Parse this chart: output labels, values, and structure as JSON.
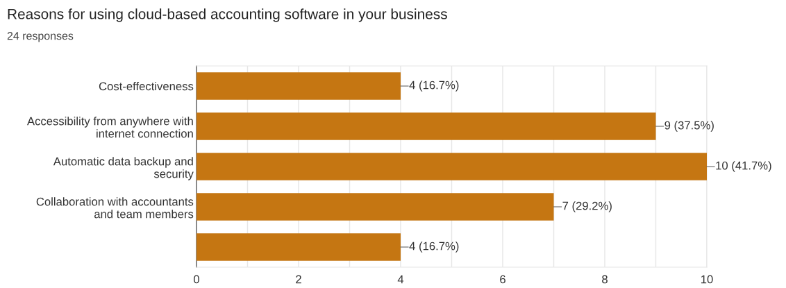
{
  "chart_data": {
    "type": "bar",
    "orientation": "horizontal",
    "title": "Reasons for using cloud-based accounting software in your business",
    "subtitle": "24 responses",
    "categories": [
      "Cost-effectiveness",
      "Accessibility from anywhere with\ninternet connection",
      "Automatic data backup and\nsecurity",
      "Collaboration with accountants\nand team members",
      null
    ],
    "values": [
      4,
      9,
      10,
      7,
      4
    ],
    "color": "#c57612",
    "value_labels": [
      "4 (16.7%)",
      "9 (37.5%)",
      "10 (41.7%)",
      "7 (29.2%)",
      "4 (16.7%)"
    ],
    "xlim": [
      0,
      10
    ],
    "xticks": [
      0,
      {
        "value": 1,
        "label": null
      },
      2,
      {
        "value": 3,
        "label": null
      },
      4,
      {
        "value": 5,
        "label": null
      },
      6,
      {
        "value": 7,
        "label": null
      },
      8,
      {
        "value": 9,
        "label": null
      },
      10
    ],
    "grid": "x"
  }
}
